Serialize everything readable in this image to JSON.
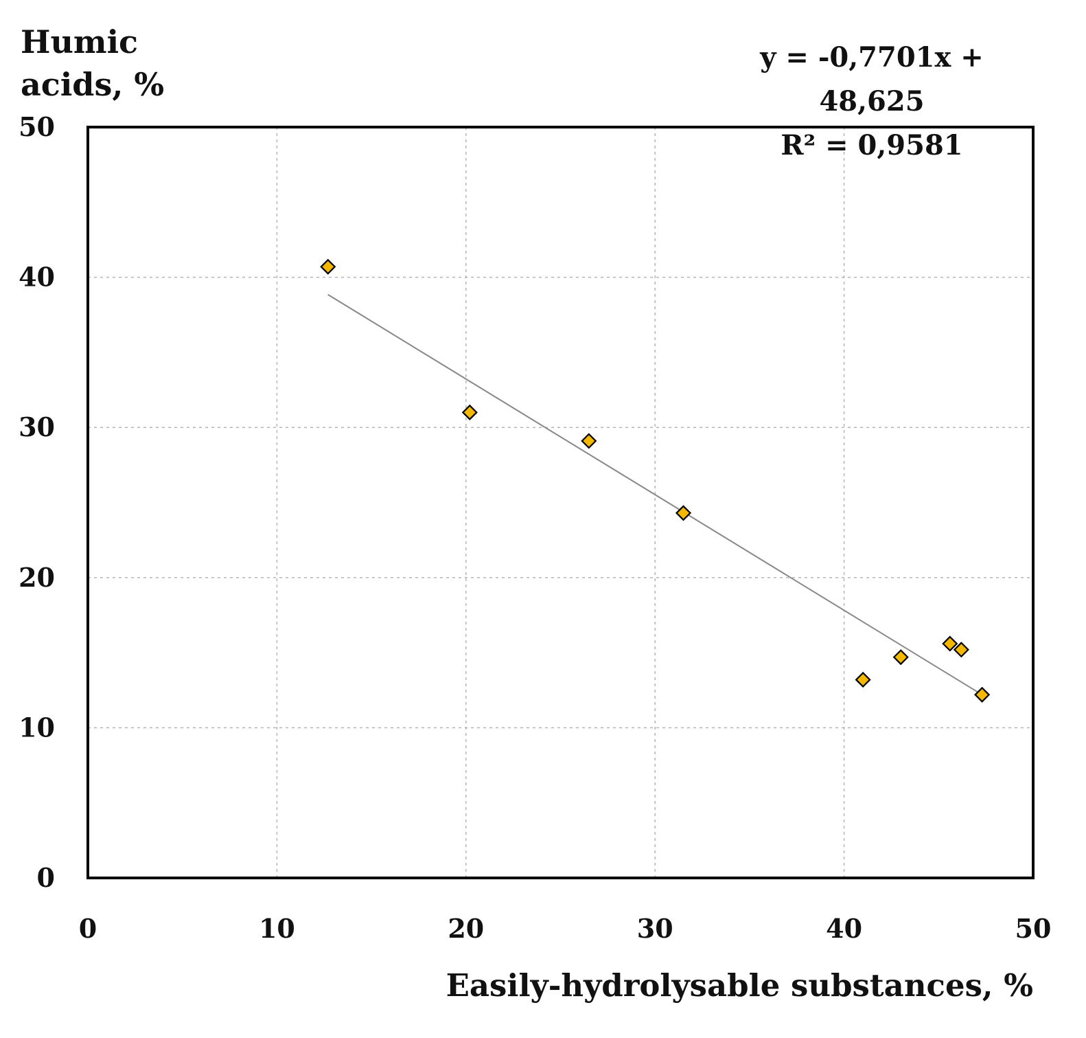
{
  "chart_data": {
    "type": "scatter",
    "ylabel": [
      "Humic",
      "acids, %"
    ],
    "xlabel": "Easily-hydrolysable substances, %",
    "xlim": [
      0,
      50
    ],
    "ylim": [
      0,
      50
    ],
    "x_ticks": [
      "0",
      "10",
      "20",
      "30",
      "40",
      "50"
    ],
    "y_ticks": [
      "0",
      "10",
      "20",
      "30",
      "40",
      "50"
    ],
    "grid": true,
    "grid_style": "dotted",
    "marker": "diamond",
    "marker_color": "#F5B800",
    "trendline_color": "#888888",
    "points": [
      {
        "x": 12.7,
        "y": 40.7
      },
      {
        "x": 20.2,
        "y": 31.0
      },
      {
        "x": 26.5,
        "y": 29.1
      },
      {
        "x": 31.5,
        "y": 24.3
      },
      {
        "x": 41.0,
        "y": 13.2
      },
      {
        "x": 43.0,
        "y": 14.7
      },
      {
        "x": 45.6,
        "y": 15.6
      },
      {
        "x": 46.2,
        "y": 15.2
      },
      {
        "x": 47.3,
        "y": 12.2
      }
    ],
    "trendline": {
      "slope": -0.7701,
      "intercept": 48.625,
      "x_range": [
        12.7,
        47.3
      ],
      "equation": "y = -0,7701x + 48,625",
      "r_squared": "R² = 0,9581"
    }
  }
}
